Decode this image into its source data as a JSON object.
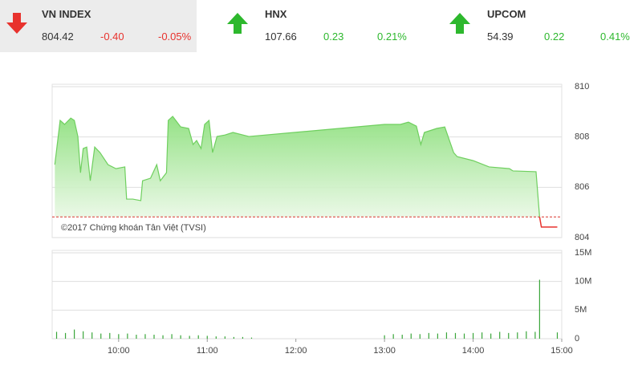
{
  "header": {
    "indices": [
      {
        "name": "VN INDEX",
        "value": "804.42",
        "change": -0.4,
        "change_label": "-0.40",
        "percent": "-0.05%",
        "color": "#e8322d"
      },
      {
        "name": "HNX",
        "value": "107.66",
        "change": 0.23,
        "change_label": "0.23",
        "percent": "0.21%",
        "color": "#2db82d"
      },
      {
        "name": "UPCOM",
        "value": "54.39",
        "change": 0.22,
        "change_label": "0.22",
        "percent": "0.41%",
        "color": "#2db82d"
      }
    ]
  },
  "chart_data": [
    {
      "type": "area",
      "annotation": "©2017 Chứng khoán Tân Việt (TVSI)",
      "x": [
        9.28,
        9.34,
        9.39,
        9.46,
        9.5,
        9.54,
        9.57,
        9.6,
        9.64,
        9.68,
        9.73,
        9.79,
        9.88,
        9.97,
        10.07,
        10.09,
        10.16,
        10.25,
        10.27,
        10.36,
        10.43,
        10.47,
        10.54,
        10.56,
        10.61,
        10.7,
        10.79,
        10.84,
        10.88,
        10.93,
        10.97,
        11.02,
        11.06,
        11.11,
        11.2,
        11.29,
        11.47,
        13.0,
        13.18,
        13.27,
        13.36,
        13.41,
        13.45,
        13.59,
        13.68,
        13.78,
        13.82,
        14.0,
        14.18,
        14.41,
        14.45,
        14.71,
        14.75,
        14.77,
        14.95
      ],
      "values": [
        806.9,
        808.66,
        808.5,
        808.75,
        808.66,
        808.02,
        806.58,
        807.54,
        807.6,
        806.26,
        807.6,
        807.38,
        806.9,
        806.74,
        806.81,
        805.53,
        805.53,
        805.47,
        806.26,
        806.36,
        806.9,
        806.26,
        806.58,
        808.66,
        808.82,
        808.4,
        808.34,
        807.7,
        807.86,
        807.54,
        808.5,
        808.66,
        807.38,
        808.02,
        808.08,
        808.18,
        808.02,
        808.5,
        808.5,
        808.59,
        808.43,
        807.7,
        808.18,
        808.34,
        808.4,
        807.38,
        807.22,
        807.06,
        806.81,
        806.74,
        806.65,
        806.62,
        804.82,
        804.42,
        804.42
      ],
      "color": "#6fcf5f",
      "color_below": "#e8322d",
      "reference": 804.82,
      "reference_color": "#d9362f",
      "xlim": [
        9.25,
        15.0
      ],
      "ylim": [
        804,
        810
      ],
      "yticks": [
        804,
        806,
        808,
        810
      ],
      "grid": true
    },
    {
      "type": "bar",
      "x": [
        9.3,
        9.4,
        9.5,
        9.6,
        9.7,
        9.8,
        9.9,
        10.0,
        10.1,
        10.2,
        10.3,
        10.4,
        10.5,
        10.6,
        10.7,
        10.8,
        10.9,
        11.0,
        11.1,
        11.2,
        11.3,
        11.4,
        11.5,
        13.0,
        13.1,
        13.2,
        13.3,
        13.4,
        13.5,
        13.6,
        13.7,
        13.8,
        13.9,
        14.0,
        14.1,
        14.2,
        14.3,
        14.4,
        14.5,
        14.6,
        14.7,
        14.75,
        14.95
      ],
      "values": [
        1.2,
        1.0,
        1.6,
        1.3,
        1.1,
        0.9,
        1.0,
        0.8,
        0.9,
        0.7,
        0.8,
        0.7,
        0.6,
        0.8,
        0.6,
        0.5,
        0.6,
        0.5,
        0.4,
        0.4,
        0.3,
        0.3,
        0.2,
        0.6,
        0.8,
        0.7,
        0.9,
        0.8,
        1.0,
        0.9,
        1.1,
        1.0,
        0.9,
        1.0,
        1.1,
        0.9,
        1.2,
        1.0,
        1.1,
        1.3,
        1.2,
        10.3,
        1.1
      ],
      "color": "#3aa63a",
      "xlim": [
        9.25,
        15.0
      ],
      "xticks": [
        {
          "value": 10,
          "label": "10:00"
        },
        {
          "value": 11,
          "label": "11:00"
        },
        {
          "value": 12,
          "label": "12:00"
        },
        {
          "value": 13,
          "label": "13:00"
        },
        {
          "value": 14,
          "label": "14:00"
        },
        {
          "value": 15,
          "label": "15:00"
        }
      ],
      "ylim": [
        0,
        15
      ],
      "yticks": [
        0,
        {
          "value": 5,
          "label": "5M"
        },
        {
          "value": 10,
          "label": "10M"
        },
        {
          "value": 15,
          "label": "15M"
        }
      ],
      "grid": true
    }
  ]
}
